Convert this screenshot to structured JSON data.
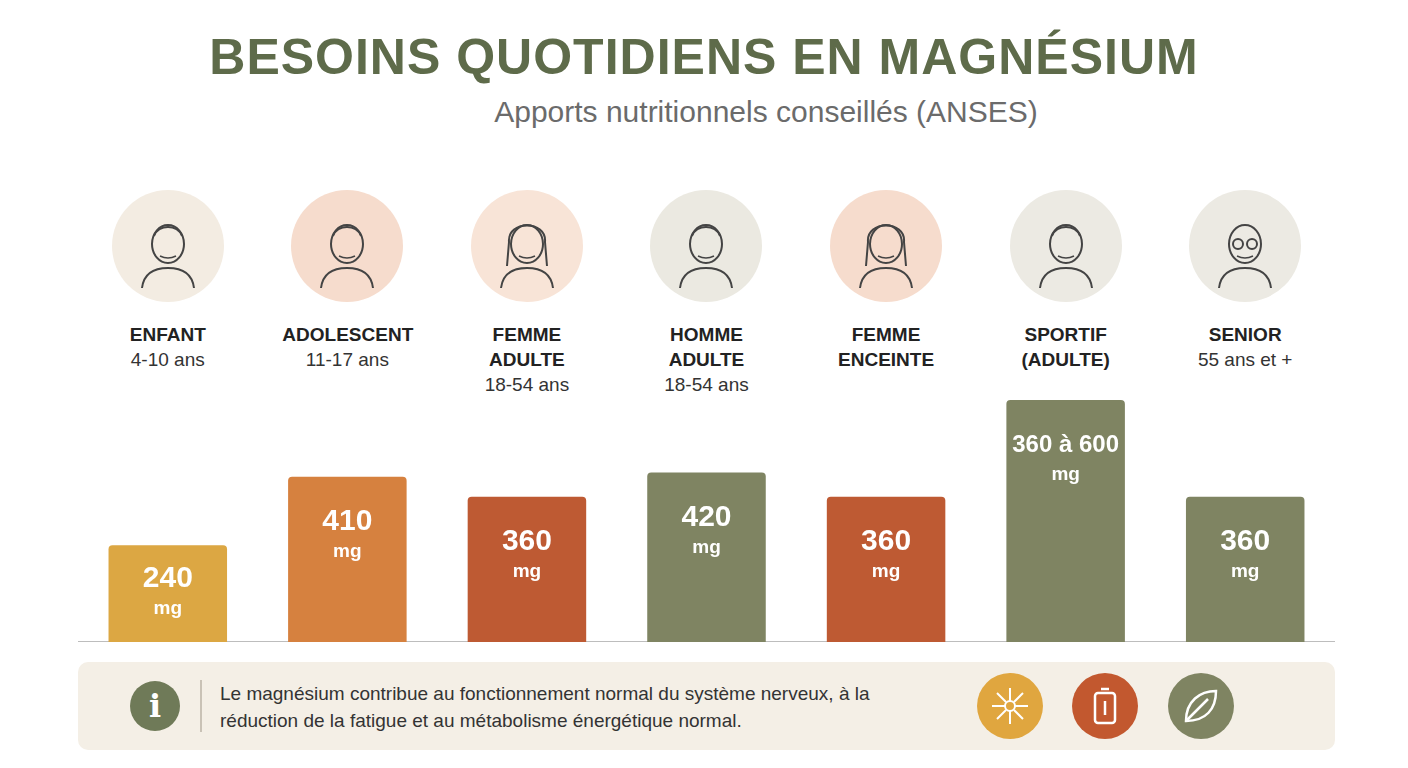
{
  "chart_data": {
    "type": "bar",
    "title": "BESOINS QUOTIDIENS EN MAGNÉSIUM",
    "subtitle": "Apports nutritionnels conseillés (ANSES)",
    "categories": [
      "ENFANT",
      "ADOLESCENT",
      "FEMME ADULTE",
      "HOMME ADULTE",
      "FEMME ENCEINTE",
      "SPORTIF (ADULTE)",
      "SENIOR"
    ],
    "age_ranges": [
      "4-10 ans",
      "11-17 ans",
      "18-54 ans",
      "18-54 ans",
      null,
      null,
      "55 ans et +"
    ],
    "values": [
      240,
      410,
      360,
      420,
      360,
      600,
      360
    ],
    "value_labels": [
      "240 mg",
      "410 mg",
      "360 mg",
      "420 mg",
      "360 mg",
      "360 à 600 mg",
      "360 mg"
    ],
    "colors": [
      "#dca743",
      "#d6813f",
      "#be5a33",
      "#7f8462",
      "#be5a33",
      "#7f8462",
      "#7f8462"
    ],
    "ylim": [
      0,
      600
    ],
    "grid": false,
    "tick_labels": false,
    "data_labels": true,
    "annotations": [
      "Le magnésium contribue au fonctionnement normal du système nerveux, à la réduction de la fatigue et au métabolisme énergétique normal."
    ]
  }
}
